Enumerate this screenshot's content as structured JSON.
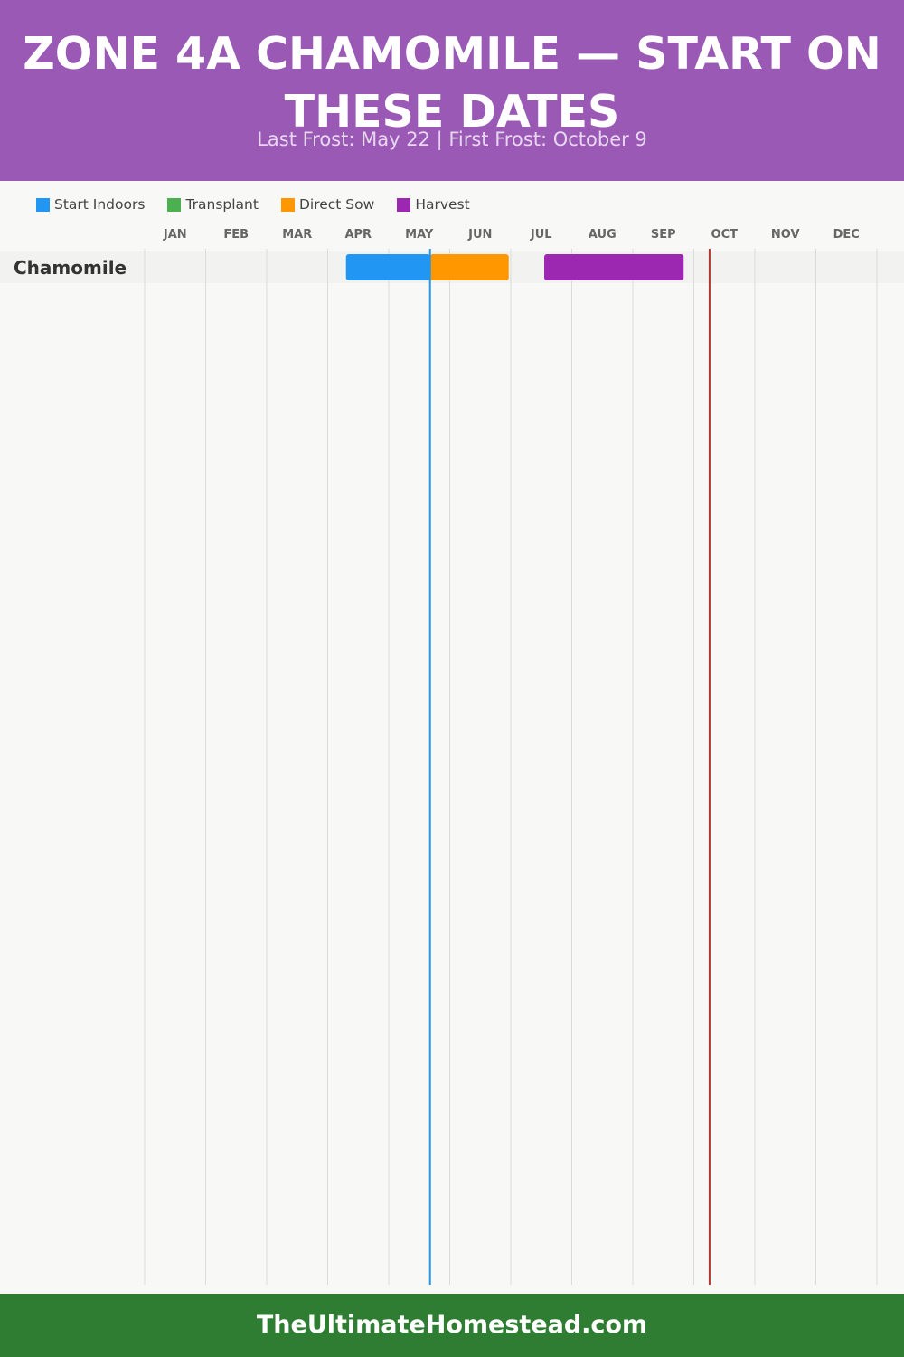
{
  "header": {
    "title": "Zone 4a Chamomile — Start on These Dates",
    "subtitle": "Last Frost: May 22 | First Frost: October 9"
  },
  "legend": [
    {
      "label": "Start Indoors",
      "color": "#2196f3"
    },
    {
      "label": "Transplant",
      "color": "#4caf50"
    },
    {
      "label": "Direct Sow",
      "color": "#ff9800"
    },
    {
      "label": "Harvest",
      "color": "#9c27b0"
    }
  ],
  "chart_data": {
    "type": "gantt",
    "months": [
      "JAN",
      "FEB",
      "MAR",
      "APR",
      "MAY",
      "JUN",
      "JUL",
      "AUG",
      "SEP",
      "OCT",
      "NOV",
      "DEC"
    ],
    "rows": [
      {
        "crop": "Chamomile",
        "bars": [
          {
            "activity": "Start Indoors",
            "start": "Apr 10",
            "end": "May 22",
            "color": "#2196f3"
          },
          {
            "activity": "Direct Sow",
            "start": "May 22",
            "end": "Jun 30",
            "color": "#ff9800"
          },
          {
            "activity": "Harvest",
            "start": "Jul 18",
            "end": "Sep 26",
            "color": "#9c27b0"
          }
        ]
      }
    ],
    "markers": [
      {
        "label": "Last Frost",
        "date": "May 22",
        "color": "#2196f3"
      },
      {
        "label": "First Frost",
        "date": "Oct 9",
        "color": "#b03a2e"
      }
    ]
  },
  "footer": {
    "text": "TheUltimateHomestead.com"
  }
}
